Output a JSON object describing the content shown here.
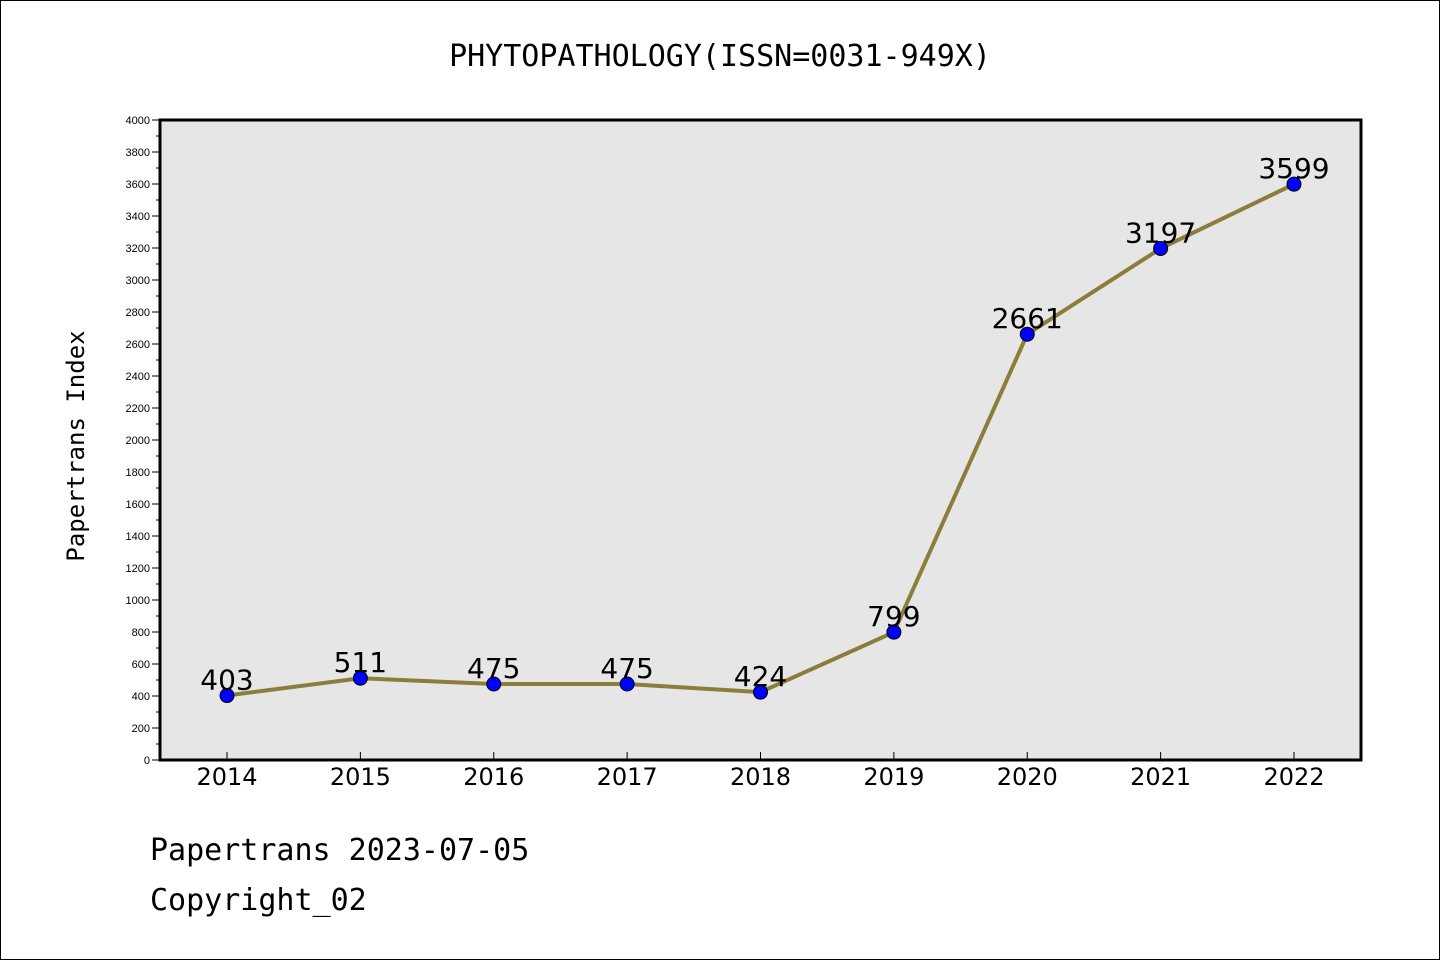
{
  "chart_data": {
    "type": "line",
    "title": "PHYTOPATHOLOGY(ISSN=0031-949X)",
    "ylabel": "Papertrans Index",
    "xlabel": "",
    "x": [
      "2014",
      "2015",
      "2016",
      "2017",
      "2018",
      "2019",
      "2020",
      "2021",
      "2022"
    ],
    "series": [
      {
        "values": [
          403,
          511,
          475,
          475,
          424,
          799,
          2661,
          3197,
          3599
        ]
      }
    ],
    "data_labels": [
      "403",
      "511",
      "475",
      "475",
      "424",
      "799",
      "2661",
      "3197",
      "3599"
    ],
    "ylim": [
      0,
      4000
    ],
    "yticks": [
      "0",
      "200",
      "400",
      "600",
      "800",
      "1000",
      "1200",
      "1400",
      "1600",
      "1800",
      "2000",
      "2200",
      "2400",
      "2600",
      "2800",
      "3000",
      "3200",
      "3400",
      "3600",
      "3800",
      "4000"
    ],
    "grid": false,
    "colors": {
      "line": "#8b7d3a",
      "marker": "#0000ff",
      "plot_bg": "#e6e6e6"
    }
  },
  "footer": {
    "line1": "Papertrans 2023-07-05",
    "line2": "Copyright_02"
  }
}
